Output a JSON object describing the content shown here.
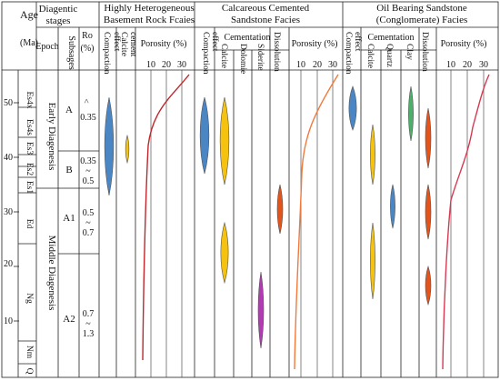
{
  "header": {
    "age": "Age",
    "ma": "(Ma)",
    "diagenetic": "Diagentic",
    "stages": "stages",
    "epoch": "Epoch",
    "substages": "Subsages",
    "ro": "Ro",
    "ro_unit": "(%)"
  },
  "age_ticks": [
    "10",
    "20",
    "30",
    "40",
    "50"
  ],
  "epochs": [
    "Es4x",
    "Es4s",
    "Es3",
    "Es2",
    "Es1",
    "Ed",
    "Ng",
    "Nm",
    "Q"
  ],
  "stages": [
    "Early Diagenesis",
    "Middle Diagenesis"
  ],
  "substages": [
    "A",
    "B",
    "A1",
    "A2"
  ],
  "ro_values": [
    [
      "<",
      "0.35"
    ],
    [
      "0.35",
      "~",
      "0.5"
    ],
    [
      "0.5",
      "~",
      "0.7"
    ],
    [
      "0.7",
      "~",
      "1.3"
    ]
  ],
  "facies": [
    {
      "title": [
        "Highly Heterogeneous",
        "Basement Rock Fcaies"
      ],
      "compaction": [
        "Compaction",
        "effect"
      ],
      "cement": [
        "Calcite",
        "cement"
      ],
      "porosity_label": "Porosity (%)",
      "porosity_ticks": [
        "10",
        "20",
        "30"
      ]
    },
    {
      "title": [
        "Calcareous Cemented",
        "Sandstone Facies"
      ],
      "compaction": [
        "Compaction",
        "effect"
      ],
      "cementation": "Cementation",
      "cements": [
        "Calcite",
        "Dolomie",
        "Siderite"
      ],
      "dissolution": "Dissolution",
      "porosity_label": "Porosity (%)",
      "porosity_ticks": [
        "10",
        "20",
        "30"
      ]
    },
    {
      "title": [
        "Oil Bearing Sandstone",
        "(Conglomerate) Facies"
      ],
      "compaction": [
        "Compaction",
        "effect"
      ],
      "cementation": "Cementation",
      "cements": [
        "Calcite",
        "Quartz",
        "Clay"
      ],
      "dissolution": "Dissolution",
      "porosity_label": "Porosity (%)",
      "porosity_ticks": [
        "10",
        "20",
        "30"
      ]
    }
  ],
  "colors": {
    "compaction": "#4a86c4",
    "calcite": "#f5c20f",
    "siderite": "#b23ab2",
    "dissolution": "#e3531a",
    "quartz": "#4a86c4",
    "clay": "#4caf6a",
    "porosity_1": "#c0262b",
    "porosity_2": "#f07a3c",
    "porosity_3": "#d63a52"
  },
  "intervals_ma": {
    "facies1_compaction": [
      33,
      51
    ],
    "facies1_calcite_cement": [
      39,
      44
    ],
    "facies2_compaction": [
      37,
      51
    ],
    "facies2_calcite": [
      [
        35,
        51
      ],
      [
        17,
        28
      ]
    ],
    "facies2_dissolution": [
      26,
      35
    ],
    "facies2_siderite": [
      5,
      19
    ],
    "facies3_compaction": [
      45,
      53
    ],
    "facies3_calcite": [
      [
        35,
        46
      ],
      [
        14,
        28
      ]
    ],
    "facies3_quartz": [
      27,
      35
    ],
    "facies3_clay": [
      43,
      53
    ],
    "facies3_dissolution": [
      [
        38,
        49
      ],
      [
        25,
        35
      ],
      [
        13,
        20
      ]
    ]
  }
}
